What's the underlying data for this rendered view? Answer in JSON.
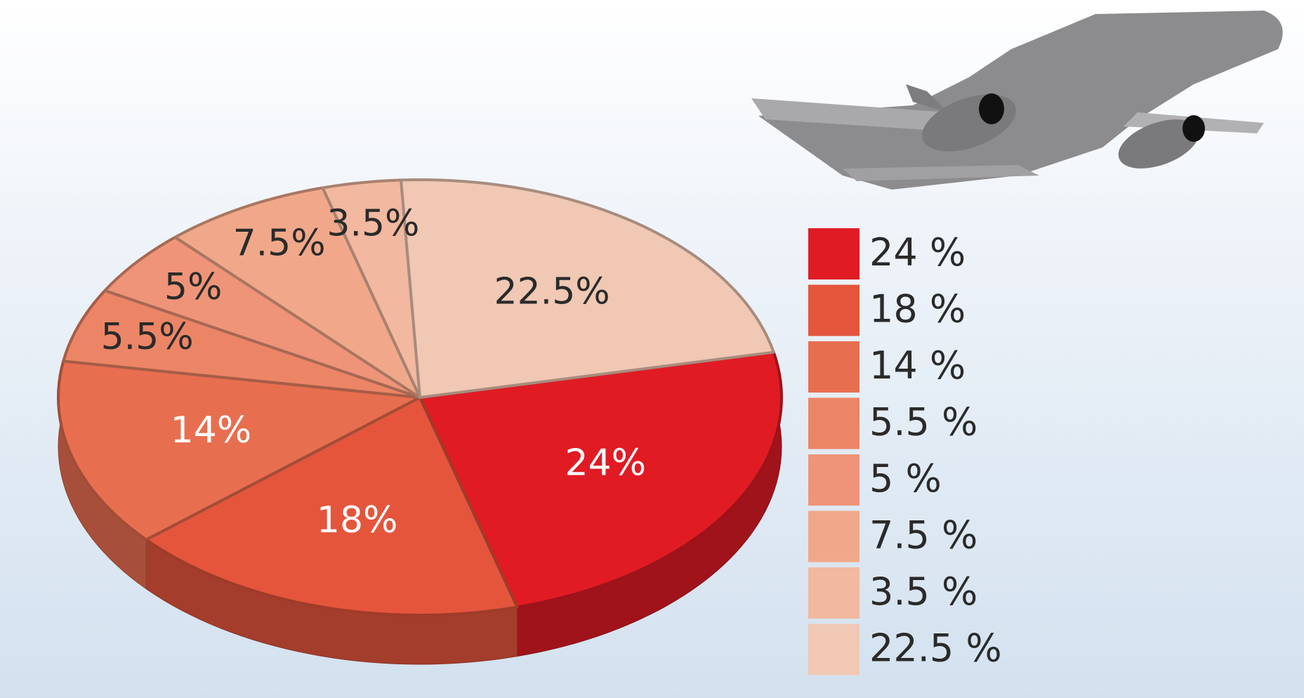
{
  "chart_data": {
    "type": "pie",
    "categories": [
      "24 %",
      "18 %",
      "14 %",
      "5.5 %",
      "5 %",
      "7.5 %",
      "3.5 %",
      "22.5 %"
    ],
    "values": [
      24,
      18,
      14,
      5.5,
      5,
      7.5,
      3.5,
      22.5
    ],
    "value_labels": [
      "24%",
      "18%",
      "14%",
      "5.5%",
      "5%",
      "7.5%",
      "3.5%",
      "22.5%"
    ],
    "colors": [
      "#e01b24",
      "#e4553c",
      "#e86e50",
      "#ec8566",
      "#ef9478",
      "#f1a88a",
      "#f2b8a0",
      "#f0c8b4"
    ],
    "label_colors": [
      "#ffffff",
      "#ffffff",
      "#ffffff",
      "#2a2a2a",
      "#2a2a2a",
      "#2a2a2a",
      "#2a2a2a",
      "#2a2a2a"
    ],
    "legend": "right"
  }
}
